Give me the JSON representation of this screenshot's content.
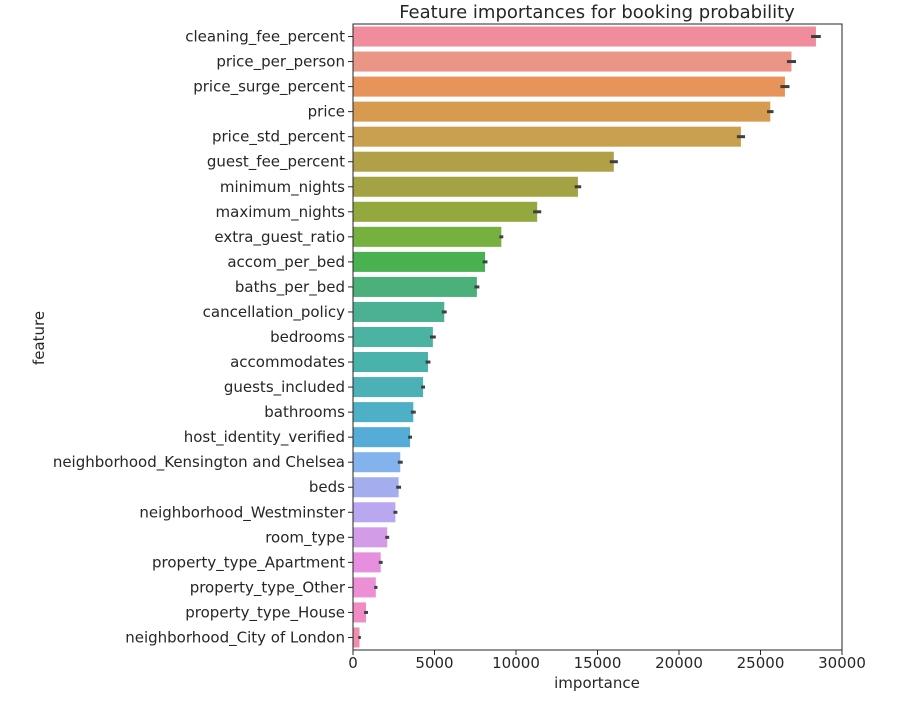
{
  "chart_data": {
    "type": "bar",
    "orientation": "horizontal",
    "title": "Feature importances for booking probability",
    "xlabel": "importance",
    "ylabel": "feature",
    "xlim": [
      0,
      30000
    ],
    "xticks": [
      0,
      5000,
      10000,
      15000,
      20000,
      25000,
      30000
    ],
    "xtick_labels": [
      "0",
      "5000",
      "10000",
      "15000",
      "20000",
      "25000",
      "30000"
    ],
    "grid": false,
    "categories": [
      "cleaning_fee_percent",
      "price_per_person",
      "price_surge_percent",
      "price",
      "price_std_percent",
      "guest_fee_percent",
      "minimum_nights",
      "maximum_nights",
      "extra_guest_ratio",
      "accom_per_bed",
      "baths_per_bed",
      "cancellation_policy",
      "bedrooms",
      "accommodates",
      "guests_included",
      "bathrooms",
      "host_identity_verified",
      "neighborhood_Kensington and Chelsea",
      "beds",
      "neighborhood_Westminster",
      "room_type",
      "property_type_Apartment",
      "property_type_Other",
      "property_type_House",
      "neighborhood_City of London"
    ],
    "values": [
      28400,
      26900,
      26500,
      25600,
      23800,
      16000,
      13800,
      11300,
      9100,
      8100,
      7600,
      5600,
      4900,
      4600,
      4300,
      3700,
      3500,
      2900,
      2800,
      2600,
      2100,
      1700,
      1400,
      800,
      400
    ],
    "error": [
      300,
      280,
      280,
      200,
      250,
      250,
      200,
      250,
      120,
      150,
      150,
      150,
      180,
      150,
      120,
      150,
      120,
      150,
      150,
      120,
      120,
      120,
      100,
      120,
      80
    ],
    "colors": [
      "#f08c9b",
      "#eb9586",
      "#e8935a",
      "#d69b4f",
      "#c9a04d",
      "#b1a048",
      "#a3a343",
      "#93a83e",
      "#76b03e",
      "#49b150",
      "#4cb07a",
      "#4cb193",
      "#4ab3a2",
      "#49b2ab",
      "#4bb1b7",
      "#4db0c6",
      "#55add7",
      "#84b2ec",
      "#a4adee",
      "#b9a7ef",
      "#d49be8",
      "#e58fde",
      "#ed8fd5",
      "#f08cc3",
      "#f08eae"
    ]
  }
}
